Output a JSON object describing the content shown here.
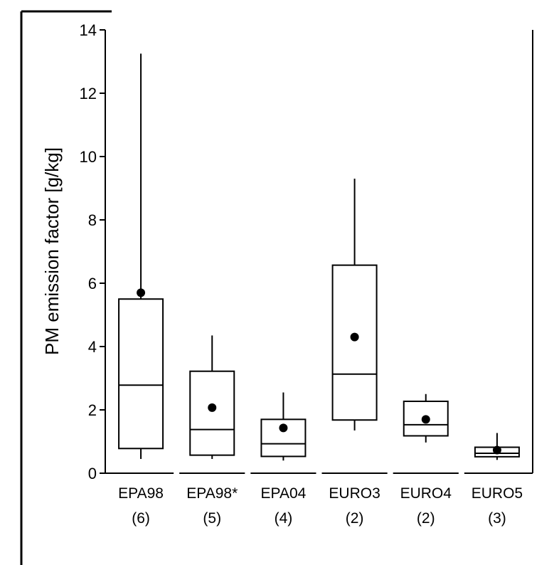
{
  "chart_data": {
    "type": "boxplot",
    "ylabel": "PM emission factor [g/kg]",
    "xlabel": "",
    "ylim": [
      0,
      14
    ],
    "yticks": [
      0,
      2,
      4,
      6,
      8,
      10,
      12,
      14
    ],
    "grid": false,
    "colors": {
      "box": "#000000",
      "mean_marker": "#000000",
      "background": "#ffffff"
    },
    "categories": [
      {
        "name": "EPA98",
        "count": "(6)",
        "min": 0.45,
        "q1": 0.78,
        "median": 2.78,
        "q3": 5.5,
        "max": 13.25,
        "mean": 5.7
      },
      {
        "name": "EPA98*",
        "count": "(5)",
        "min": 0.45,
        "q1": 0.57,
        "median": 1.38,
        "q3": 3.22,
        "max": 4.35,
        "mean": 2.07
      },
      {
        "name": "EPA04",
        "count": "(4)",
        "min": 0.4,
        "q1": 0.53,
        "median": 0.93,
        "q3": 1.7,
        "max": 2.55,
        "mean": 1.43
      },
      {
        "name": "EURO3",
        "count": "(2)",
        "min": 1.35,
        "q1": 1.68,
        "median": 3.13,
        "q3": 6.57,
        "max": 9.3,
        "mean": 4.3
      },
      {
        "name": "EURO4",
        "count": "(2)",
        "min": 0.97,
        "q1": 1.18,
        "median": 1.53,
        "q3": 2.27,
        "max": 2.5,
        "mean": 1.7
      },
      {
        "name": "EURO5",
        "count": "(3)",
        "min": 0.42,
        "q1": 0.52,
        "median": 0.63,
        "q3": 0.82,
        "max": 1.27,
        "mean": 0.73
      }
    ]
  }
}
